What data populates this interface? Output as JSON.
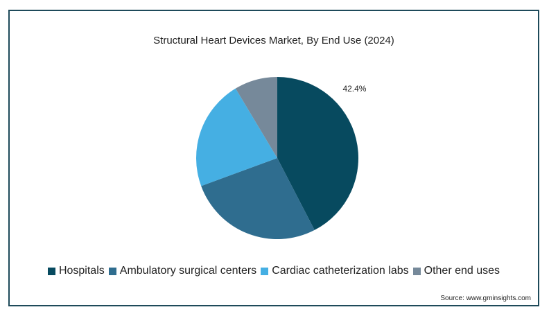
{
  "chart_data": {
    "type": "pie",
    "title": "Structural Heart Devices Market, By End Use (2024)",
    "categories": [
      "Hospitals",
      "Ambulatory surgical centers",
      "Cardiac catheterization labs",
      "Other end uses"
    ],
    "values": [
      42.4,
      27.0,
      22.0,
      8.6
    ],
    "data_labels": [
      "42.4%",
      "",
      "",
      ""
    ],
    "colors": [
      "#074a5f",
      "#2f6d8f",
      "#45afe3",
      "#76899a"
    ],
    "legend_position": "bottom"
  },
  "source": "Source: www.gminsights.com"
}
